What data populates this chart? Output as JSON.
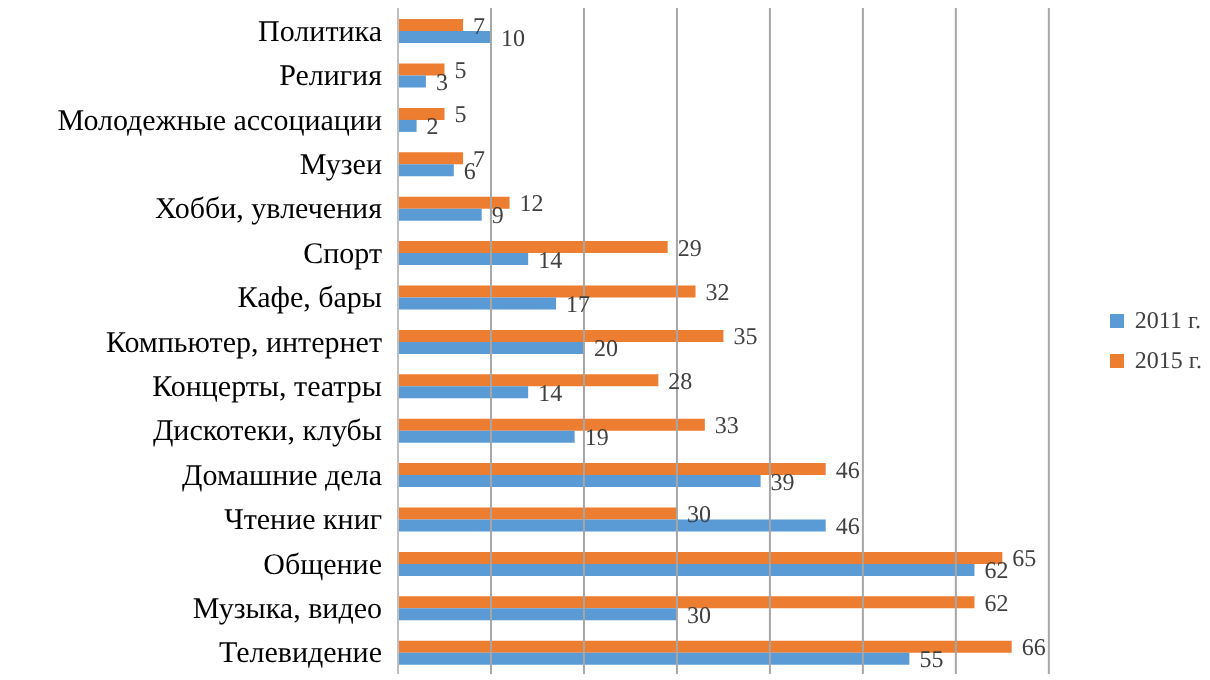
{
  "chart_data": {
    "type": "bar",
    "orientation": "horizontal",
    "categories": [
      "Политика",
      "Религия",
      "Молодежные ассоциации",
      "Музеи",
      "Хобби, увлечения",
      "Спорт",
      "Кафе, бары",
      "Компьютер, интернет",
      "Концерты, театры",
      "Дискотеки, клубы",
      "Домашние дела",
      "Чтение книг",
      "Общение",
      "Музыка, видео",
      "Телевидение"
    ],
    "series": [
      {
        "name": "2011 г.",
        "color": "#5b9bd5",
        "values": [
          10,
          3,
          2,
          6,
          9,
          14,
          17,
          20,
          14,
          19,
          39,
          46,
          62,
          30,
          55
        ]
      },
      {
        "name": "2015 г.",
        "color": "#ed7d31",
        "values": [
          7,
          5,
          5,
          7,
          12,
          29,
          32,
          35,
          28,
          33,
          46,
          30,
          65,
          62,
          66
        ]
      }
    ],
    "xlim": [
      0,
      70
    ],
    "xticks": [
      {
        "value": 0,
        "label": null
      },
      {
        "value": 10,
        "label": null
      },
      {
        "value": 20,
        "label": null
      },
      {
        "value": 30,
        "label": null
      },
      {
        "value": 40,
        "label": null
      },
      {
        "value": 50,
        "label": null
      },
      {
        "value": 60,
        "label": null
      },
      {
        "value": 70,
        "label": null
      }
    ],
    "tick_labels": "y",
    "grid": "x",
    "legend": "right",
    "data_labels": true
  }
}
